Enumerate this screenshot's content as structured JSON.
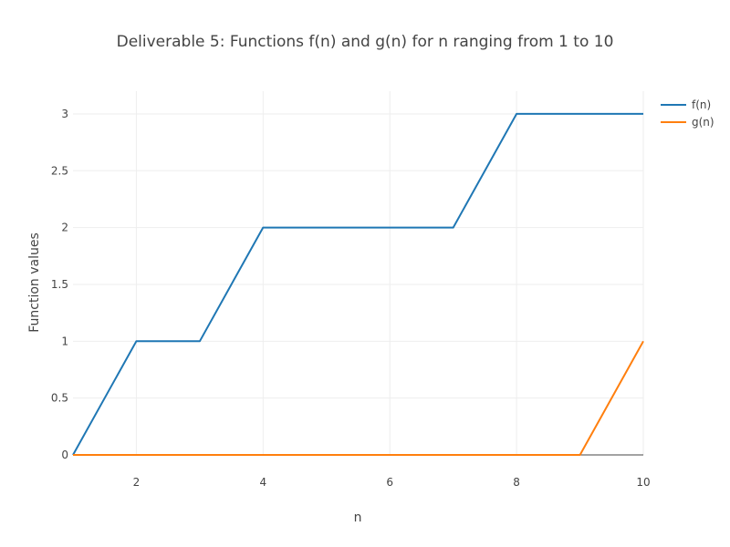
{
  "chart_data": {
    "type": "line",
    "title": "Deliverable 5: Functions f(n) and g(n) for n ranging from 1 to 10",
    "xlabel": "n",
    "ylabel": "Function values",
    "xlim": [
      1,
      10
    ],
    "ylim": [
      0,
      3.2
    ],
    "xticks": [
      2,
      4,
      6,
      8,
      10
    ],
    "xtick_labels": [
      "2",
      "4",
      "6",
      "8",
      "10"
    ],
    "yticks": [
      0,
      0.5,
      1,
      1.5,
      2,
      2.5,
      3
    ],
    "ytick_labels": [
      "0",
      "0.5",
      "1",
      "1.5",
      "2",
      "2.5",
      "3"
    ],
    "grid": true,
    "legend_position": "top-right",
    "x": [
      1,
      2,
      3,
      4,
      5,
      6,
      7,
      8,
      9,
      10
    ],
    "series": [
      {
        "name": "f(n)",
        "color": "#1f77b4",
        "values": [
          0,
          1,
          1,
          2,
          2,
          2,
          2,
          3,
          3,
          3
        ]
      },
      {
        "name": "g(n)",
        "color": "#ff7f0e",
        "values": [
          0,
          0,
          0,
          0,
          0,
          0,
          0,
          0,
          0,
          1
        ]
      }
    ]
  }
}
